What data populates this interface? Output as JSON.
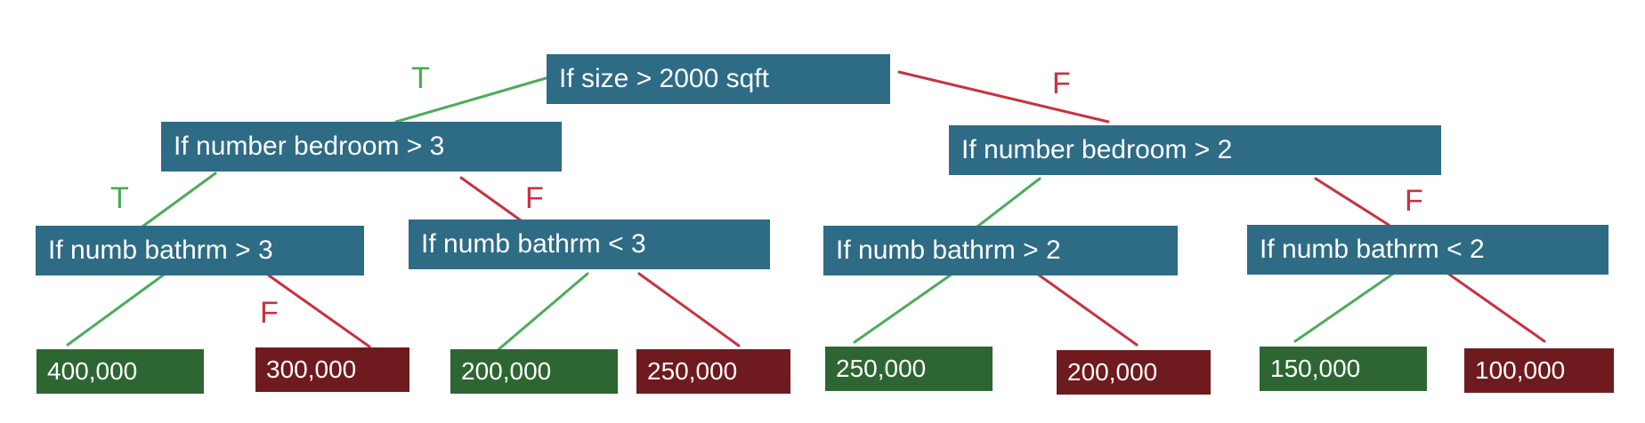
{
  "colors": {
    "decision_box": "#2e6b85",
    "true_leaf": "#2e6633",
    "false_leaf": "#6f1a1f",
    "true_edge": "#4cab5c",
    "false_edge": "#c8323e",
    "text": "#ffffff"
  },
  "root": {
    "label": "If size > 2000 sqft"
  },
  "level1": [
    {
      "label": "If number bedroom > 3"
    },
    {
      "label": "If number bedroom > 2"
    }
  ],
  "level2": [
    {
      "label": "If numb bathrm > 3"
    },
    {
      "label": "If numb bathrm < 3"
    },
    {
      "label": "If numb bathrm > 2"
    },
    {
      "label": "If numb bathrm < 2"
    }
  ],
  "leaves": [
    {
      "value": "400,000",
      "branch": "T"
    },
    {
      "value": "300,000",
      "branch": "F"
    },
    {
      "value": "200,000",
      "branch": "T"
    },
    {
      "value": "250,000",
      "branch": "F"
    },
    {
      "value": "250,000",
      "branch": "T"
    },
    {
      "value": "200,000",
      "branch": "F"
    },
    {
      "value": "150,000",
      "branch": "T"
    },
    {
      "value": "100,000",
      "branch": "F"
    }
  ],
  "edge_labels": {
    "root_true": "T",
    "root_false": "F",
    "left_true": "T",
    "left_false": "F",
    "right_false": "F",
    "ll_false": "F"
  }
}
